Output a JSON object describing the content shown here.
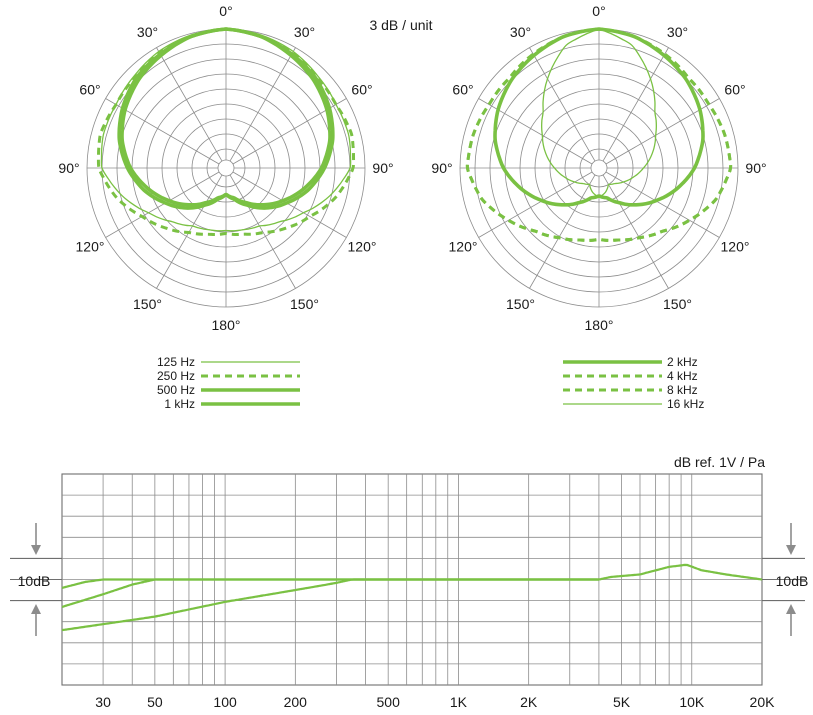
{
  "chart_data": [
    {
      "type": "polar",
      "title": "3 dB / unit",
      "angle_ticks": [
        "0°",
        "30°",
        "60°",
        "90°",
        "120°",
        "150°",
        "180°",
        "150°",
        "120°",
        "90°",
        "60°",
        "30°"
      ],
      "rings": 9,
      "color": "#7ac143",
      "series": [
        {
          "name": "125 Hz",
          "style": "thin",
          "points": [
            [
              0,
              0
            ],
            [
              15,
              0.1
            ],
            [
              30,
              0.3
            ],
            [
              45,
              0.6
            ],
            [
              60,
              0.8
            ],
            [
              75,
              0.8
            ],
            [
              90,
              1.0
            ],
            [
              105,
              2.1
            ],
            [
              120,
              3.3
            ],
            [
              135,
              4.2
            ],
            [
              150,
              4.8
            ],
            [
              165,
              5.0
            ],
            [
              180,
              5.1
            ]
          ]
        },
        {
          "name": "250 Hz",
          "style": "dashed",
          "points": [
            [
              0,
              0
            ],
            [
              15,
              0.2
            ],
            [
              30,
              0.4
            ],
            [
              45,
              0.7
            ],
            [
              60,
              0.8
            ],
            [
              75,
              0.6
            ],
            [
              90,
              0.8
            ],
            [
              105,
              1.7
            ],
            [
              120,
              2.8
            ],
            [
              135,
              3.6
            ],
            [
              150,
              4.3
            ],
            [
              165,
              4.7
            ],
            [
              180,
              4.9
            ]
          ]
        },
        {
          "name": "500 Hz",
          "style": "thick",
          "points": [
            [
              0,
              0
            ],
            [
              15,
              0.2
            ],
            [
              30,
              0.5
            ],
            [
              45,
              0.8
            ],
            [
              60,
              1.3
            ],
            [
              75,
              1.9
            ],
            [
              90,
              2.7
            ],
            [
              105,
              3.6
            ],
            [
              120,
              4.6
            ],
            [
              135,
              5.5
            ],
            [
              150,
              6.4
            ],
            [
              165,
              7.1
            ],
            [
              180,
              7.5
            ]
          ]
        },
        {
          "name": "1 kHz",
          "style": "thick",
          "points": [
            [
              0,
              0
            ],
            [
              15,
              0.2
            ],
            [
              30,
              0.6
            ],
            [
              45,
              1.0
            ],
            [
              60,
              1.5
            ],
            [
              75,
              2.1
            ],
            [
              90,
              2.9
            ],
            [
              105,
              3.9
            ],
            [
              120,
              4.9
            ],
            [
              135,
              5.8
            ],
            [
              150,
              6.6
            ],
            [
              165,
              7.2
            ],
            [
              180,
              7.5
            ]
          ]
        }
      ]
    },
    {
      "type": "polar",
      "title": "",
      "angle_ticks": [
        "0°",
        "30°",
        "60°",
        "90°",
        "120°",
        "150°",
        "180°",
        "150°",
        "120°",
        "90°",
        "60°",
        "30°"
      ],
      "rings": 9,
      "color": "#7ac143",
      "series": [
        {
          "name": "2 kHz",
          "style": "thick",
          "points": [
            [
              0,
              0
            ],
            [
              15,
              0.2
            ],
            [
              30,
              0.6
            ],
            [
              45,
              1.0
            ],
            [
              60,
              1.5
            ],
            [
              75,
              2.1
            ],
            [
              90,
              2.9
            ],
            [
              105,
              3.9
            ],
            [
              120,
              4.9
            ],
            [
              135,
              5.8
            ],
            [
              150,
              6.6
            ],
            [
              165,
              7.2
            ],
            [
              180,
              7.4
            ]
          ]
        },
        {
          "name": "4 kHz",
          "style": "dashed",
          "points": [
            [
              0,
              0
            ],
            [
              15,
              0.2
            ],
            [
              30,
              0.5
            ],
            [
              45,
              0.8
            ],
            [
              60,
              0.8
            ],
            [
              75,
              0.6
            ],
            [
              90,
              0.5
            ],
            [
              105,
              1.2
            ],
            [
              120,
              2.3
            ],
            [
              135,
              3.3
            ],
            [
              150,
              3.9
            ],
            [
              165,
              4.3
            ],
            [
              180,
              4.5
            ]
          ]
        },
        {
          "name": "8 kHz",
          "style": "dashed",
          "points": [
            [
              0,
              0
            ],
            [
              15,
              0.2
            ],
            [
              30,
              0.5
            ],
            [
              45,
              0.8
            ],
            [
              60,
              0.8
            ],
            [
              75,
              0.6
            ],
            [
              90,
              0.5
            ],
            [
              105,
              1.2
            ],
            [
              120,
              2.3
            ],
            [
              135,
              3.3
            ],
            [
              150,
              3.9
            ],
            [
              165,
              4.3
            ],
            [
              180,
              4.5
            ]
          ]
        },
        {
          "name": "16 kHz",
          "style": "thin",
          "points": [
            [
              0,
              0
            ],
            [
              15,
              0.8
            ],
            [
              30,
              2.4
            ],
            [
              45,
              4.0
            ],
            [
              60,
              4.9
            ],
            [
              75,
              5.6
            ],
            [
              90,
              6.3
            ],
            [
              105,
              6.9
            ],
            [
              120,
              7.4
            ],
            [
              135,
              7.8
            ],
            [
              150,
              8.0
            ],
            [
              165,
              7.6
            ],
            [
              180,
              7.3
            ]
          ]
        }
      ]
    },
    {
      "type": "line",
      "title": "",
      "ylabel": "dB ref. 1V / Pa",
      "scale_label": "10dB",
      "x_scale": "log",
      "xlim": [
        20,
        20000
      ],
      "ylim": [
        -25,
        25
      ],
      "reference_level": 0,
      "x_ticks": [
        30,
        50,
        100,
        200,
        500,
        1000,
        2000,
        5000,
        10000,
        20000
      ],
      "x_tick_labels": [
        "30",
        "50",
        "100",
        "200",
        "500",
        "1K",
        "2K",
        "5K",
        "10K",
        "20K"
      ],
      "color": "#7ac143",
      "series": [
        {
          "points": [
            [
              20,
              -2
            ],
            [
              25,
              -0.6
            ],
            [
              30,
              0
            ],
            [
              100,
              0
            ],
            [
              1000,
              0
            ],
            [
              4000,
              0
            ],
            [
              4500,
              0.6
            ],
            [
              6000,
              1.2
            ],
            [
              8000,
              3.0
            ],
            [
              9500,
              3.5
            ],
            [
              11000,
              2.2
            ],
            [
              14000,
              1.2
            ],
            [
              20000,
              0
            ]
          ]
        },
        {
          "points": [
            [
              20,
              -6.5
            ],
            [
              30,
              -3.5
            ],
            [
              40,
              -1.2
            ],
            [
              50,
              0
            ],
            [
              100,
              0
            ],
            [
              1000,
              0
            ],
            [
              4000,
              0
            ]
          ]
        },
        {
          "points": [
            [
              20,
              -12
            ],
            [
              50,
              -8.8
            ],
            [
              100,
              -5.3
            ],
            [
              200,
              -2.5
            ],
            [
              300,
              -0.8
            ],
            [
              350,
              0
            ],
            [
              1000,
              0
            ],
            [
              4000,
              0
            ]
          ]
        }
      ]
    }
  ]
}
